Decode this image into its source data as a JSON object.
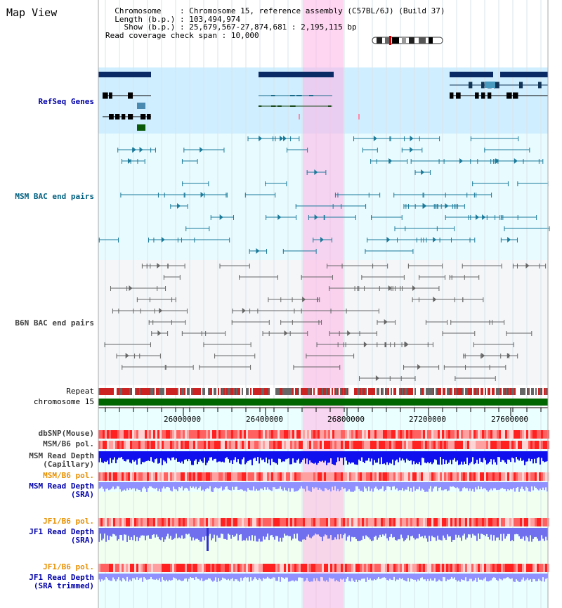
{
  "app": {
    "title": "Map View"
  },
  "header": {
    "chromosome_label": "Chromosome",
    "chromosome_value": "Chromosome 15, reference assembly (C57BL/6J) (Build 37)",
    "length_label": "Length (b.p.)",
    "length_value": "103,494,974",
    "show_label": "Show (b.p.)",
    "show_value": "25,679,567-27,874,681 : 2,195,115 bp",
    "span_label": "Read coverage check span",
    "span_value": "10,000"
  },
  "tracks": {
    "refseq": "RefSeq Genes",
    "msm_bac": "MSM BAC end pairs",
    "b6n_bac": "B6N BAC end pairs",
    "repeat": "Repeat",
    "chromosome": "chromosome 15",
    "dbsnp": "dbSNP(Mouse)",
    "msm_b6_pol_1": "MSM/B6 pol.",
    "msm_depth_cap": "MSM Read Depth\n(Capillary)",
    "msm_b6_pol_2": "MSM/B6 pol.",
    "msm_depth_sra": "MSM Read Depth\n(SRA)",
    "jf1_b6_pol_1": "JF1/B6 pol.",
    "jf1_depth_sra": "JF1 Read Depth\n(SRA)",
    "jf1_b6_pol_2": "JF1/B6 pol.",
    "jf1_depth_trim": "JF1 Read Depth\n(SRA trimmed)"
  },
  "axis": {
    "ticks": [
      "26000000",
      "26400000",
      "26800000",
      "27200000",
      "27600000"
    ]
  },
  "colors": {
    "refseq_label": "#0000aa",
    "msm_label": "#006080",
    "b6n_label": "#404040",
    "orange_label": "#e89000",
    "blue_label": "#0000aa",
    "highlight": "#ffb4e6",
    "chromosome_bar": "#006600"
  }
}
